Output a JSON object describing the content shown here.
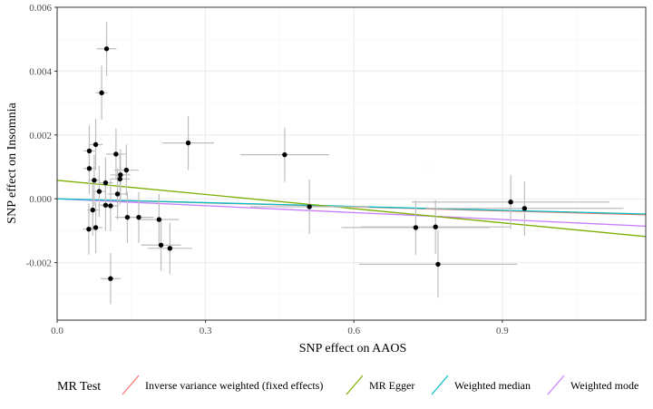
{
  "chart_data": {
    "type": "scatter",
    "title": "",
    "xlabel": "SNP effect on AAOS",
    "ylabel": "SNP effect on Insomnia",
    "xlim": [
      0.0,
      1.19
    ],
    "ylim": [
      -0.0038,
      0.006
    ],
    "x_ticks": [
      0.0,
      0.3,
      0.6,
      0.9
    ],
    "x_tick_labels": [
      "0.0",
      "0.3",
      "0.6",
      "0.9"
    ],
    "y_ticks": [
      -0.002,
      0.0,
      0.002,
      0.004,
      0.006
    ],
    "y_tick_labels": [
      "-0.002",
      "0.000",
      "0.002",
      "0.004",
      "0.006"
    ],
    "grid": true,
    "points": [
      {
        "x": 0.1,
        "y": 0.0047,
        "xerr": 0.02,
        "yerr": 0.00085
      },
      {
        "x": 0.09,
        "y": 0.00332,
        "xerr": 0.012,
        "yerr": 0.00085
      },
      {
        "x": 0.265,
        "y": 0.00175,
        "xerr": 0.052,
        "yerr": 0.00085
      },
      {
        "x": 0.46,
        "y": 0.00138,
        "xerr": 0.09,
        "yerr": 0.00085
      },
      {
        "x": 0.065,
        "y": 0.0015,
        "xerr": 0.012,
        "yerr": 0.0008
      },
      {
        "x": 0.078,
        "y": 0.0017,
        "xerr": 0.014,
        "yerr": 0.0008
      },
      {
        "x": 0.119,
        "y": 0.0014,
        "xerr": 0.02,
        "yerr": 0.0008
      },
      {
        "x": 0.065,
        "y": 0.00095,
        "xerr": 0.012,
        "yerr": 0.0008
      },
      {
        "x": 0.14,
        "y": 0.0009,
        "xerr": 0.025,
        "yerr": 0.0008
      },
      {
        "x": 0.128,
        "y": 0.00075,
        "xerr": 0.02,
        "yerr": 0.0008
      },
      {
        "x": 0.127,
        "y": 0.00062,
        "xerr": 0.02,
        "yerr": 0.0008
      },
      {
        "x": 0.075,
        "y": 0.00058,
        "xerr": 0.012,
        "yerr": 0.0008
      },
      {
        "x": 0.098,
        "y": 0.0005,
        "xerr": 0.015,
        "yerr": 0.0008
      },
      {
        "x": 0.085,
        "y": 0.00023,
        "xerr": 0.013,
        "yerr": 0.0008
      },
      {
        "x": 0.122,
        "y": 0.00015,
        "xerr": 0.02,
        "yerr": 0.0008
      },
      {
        "x": 0.51,
        "y": -0.00025,
        "xerr": 0.12,
        "yerr": 0.00085
      },
      {
        "x": 0.098,
        "y": -0.0002,
        "xerr": 0.015,
        "yerr": 0.0008
      },
      {
        "x": 0.108,
        "y": -0.00022,
        "xerr": 0.017,
        "yerr": 0.0008
      },
      {
        "x": 0.072,
        "y": -0.00035,
        "xerr": 0.012,
        "yerr": 0.0008
      },
      {
        "x": 0.142,
        "y": -0.00058,
        "xerr": 0.025,
        "yerr": 0.0008
      },
      {
        "x": 0.165,
        "y": -0.00058,
        "xerr": 0.03,
        "yerr": 0.0008
      },
      {
        "x": 0.206,
        "y": -0.00065,
        "xerr": 0.04,
        "yerr": 0.0008
      },
      {
        "x": 0.064,
        "y": -0.00095,
        "xerr": 0.012,
        "yerr": 0.0008
      },
      {
        "x": 0.078,
        "y": -0.0009,
        "xerr": 0.014,
        "yerr": 0.0008
      },
      {
        "x": 0.21,
        "y": -0.00145,
        "xerr": 0.04,
        "yerr": 0.0008
      },
      {
        "x": 0.228,
        "y": -0.00155,
        "xerr": 0.045,
        "yerr": 0.0008
      },
      {
        "x": 0.108,
        "y": -0.0025,
        "xerr": 0.02,
        "yerr": 0.0008
      },
      {
        "x": 0.725,
        "y": -0.0009,
        "xerr": 0.15,
        "yerr": 0.00085
      },
      {
        "x": 0.765,
        "y": -0.00088,
        "xerr": 0.15,
        "yerr": 0.00085
      },
      {
        "x": 0.77,
        "y": -0.00205,
        "xerr": 0.16,
        "yerr": 0.00105
      },
      {
        "x": 0.917,
        "y": -0.0001,
        "xerr": 0.2,
        "yerr": 0.00085
      },
      {
        "x": 0.945,
        "y": -0.0003,
        "xerr": 0.2,
        "yerr": 0.00085
      }
    ],
    "legend": {
      "title": "MR Test",
      "position": "bottom",
      "entries": [
        {
          "label": "Inverse variance weighted (fixed effects)",
          "color": "#F8766D"
        },
        {
          "label": "MR Egger",
          "color": "#7CAE00"
        },
        {
          "label": "Weighted median",
          "color": "#00BFC4"
        },
        {
          "label": "Weighted mode",
          "color": "#C77CFF"
        }
      ]
    },
    "lines": [
      {
        "label": "Inverse variance weighted (fixed effects)",
        "color": "#F8766D",
        "intercept": 0.0,
        "slope": -0.00042
      },
      {
        "label": "Weighted mode",
        "color": "#C77CFF",
        "intercept": 0.0,
        "slope": -0.00072
      },
      {
        "label": "Weighted median",
        "color": "#00BFC4",
        "intercept": 0.0,
        "slope": -0.0004
      },
      {
        "label": "MR Egger",
        "color": "#7CAE00",
        "intercept": 0.00058,
        "slope": -0.00148
      }
    ],
    "colors": {
      "point": "#000000",
      "errorbar": "#bebebe",
      "grid_major": "#ebebeb",
      "grid_minor": "#f5f5f5",
      "panel_border": "#333333"
    }
  }
}
